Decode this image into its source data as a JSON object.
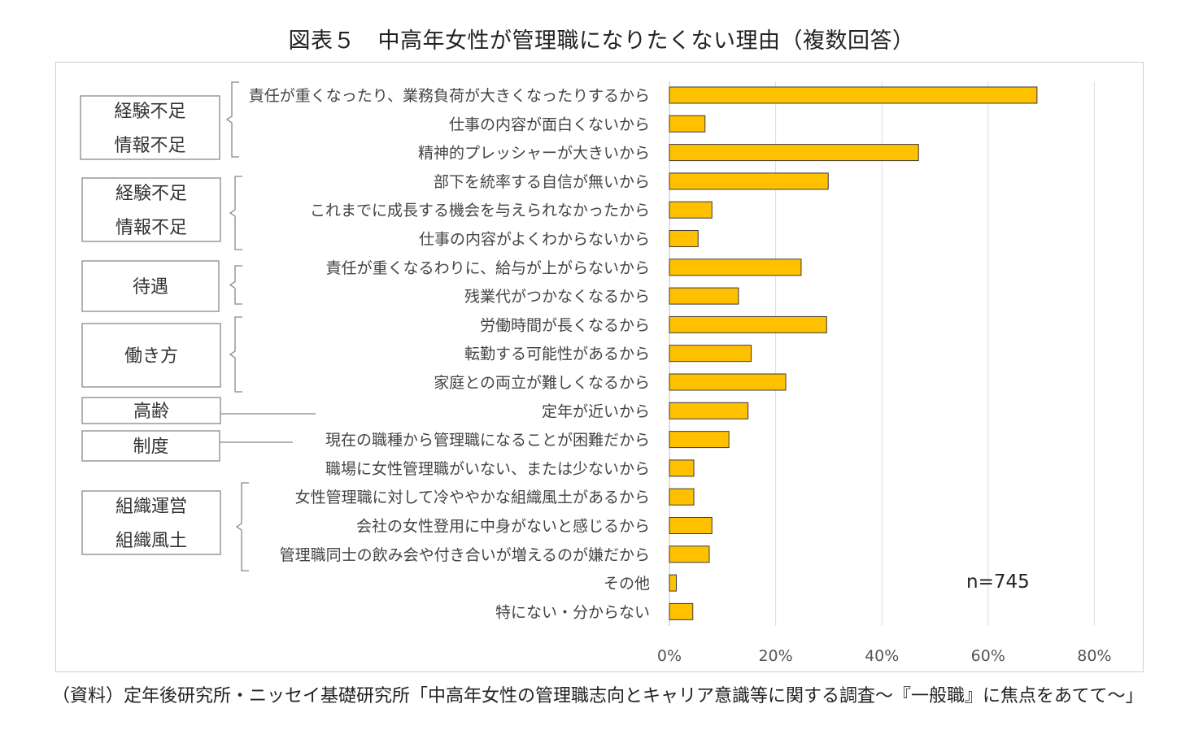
{
  "title": "図表５　中高年女性が管理職になりたくない理由（複数回答）",
  "source": "（資料）定年後研究所・ニッセイ基礎研究所「中高年女性の管理職志向とキャリア意識等に関する調査～『一般職』に焦点をあてて～」",
  "sample_note": "n=745",
  "groups": [
    {
      "lines": [
        "経験不足",
        "情報不足"
      ]
    },
    {
      "lines": [
        "経験不足",
        "情報不足"
      ]
    },
    {
      "lines": [
        "待遇"
      ]
    },
    {
      "lines": [
        "働き方"
      ]
    },
    {
      "lines": [
        "高齢"
      ]
    },
    {
      "lines": [
        "制度"
      ]
    },
    {
      "lines": [
        "組織運営",
        "組織風土"
      ]
    }
  ],
  "chart_data": {
    "type": "bar",
    "orientation": "horizontal",
    "categories": [
      "責任が重くなったり、業務負荷が大きくなったりするから",
      "仕事の内容が面白くないから",
      "精神的プレッシャーが大きいから",
      "部下を統率する自信が無いから",
      "これまでに成長する機会を与えられなかったから",
      "仕事の内容がよくわからないから",
      "責任が重くなるわりに、給与が上がらないから",
      "残業代がつかなくなるから",
      "労働時間が長くなるから",
      "転勤する可能性があるから",
      "家庭との両立が難しくなるから",
      "定年が近いから",
      "現在の職種から管理職になることが困難だから",
      "職場に女性管理職がいない、または少ないから",
      "女性管理職に対して冷ややかな組織風土があるから",
      "会社の女性登用に中身がないと感じるから",
      "管理職同士の飲み会や付き合いが増えるのが嫌だから",
      "その他",
      "特にない・分からない"
    ],
    "values": [
      69.2,
      6.7,
      46.9,
      29.9,
      8.0,
      5.4,
      24.8,
      13.0,
      29.6,
      15.4,
      21.9,
      14.8,
      11.2,
      4.6,
      4.6,
      8.0,
      7.5,
      1.3,
      4.4
    ],
    "unit": "%",
    "xlim": [
      0,
      80
    ],
    "xticks": [
      "0%",
      "20%",
      "40%",
      "60%",
      "80%"
    ],
    "grid": true,
    "bar_color": "#FFC000",
    "bar_edge_color": "#3a3a3a"
  }
}
